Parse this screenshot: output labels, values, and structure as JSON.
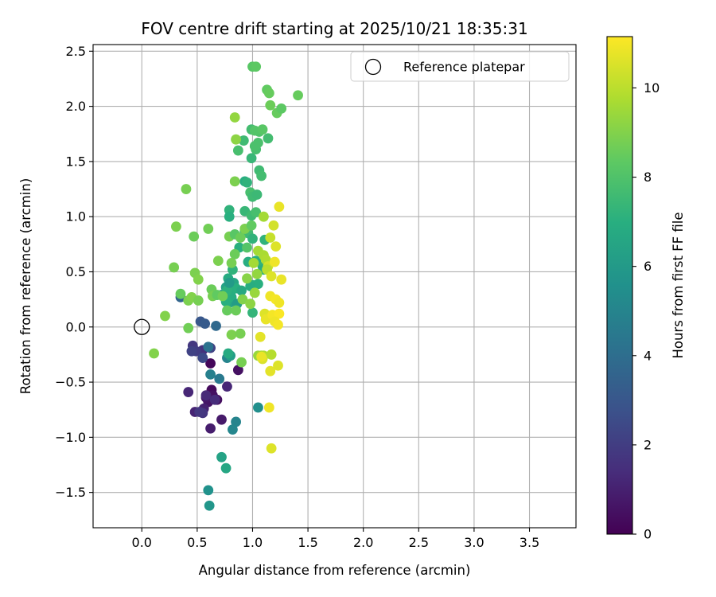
{
  "chart_data": {
    "type": "scatter",
    "title": "FOV centre drift starting at 2025/10/21 18:35:31",
    "xlabel": "Angular distance from reference (arcmin)",
    "ylabel": "Rotation from reference (arcmin)",
    "xlim": [
      -0.44,
      3.92
    ],
    "ylim": [
      -1.82,
      2.56
    ],
    "xticks": [
      0.0,
      0.5,
      1.0,
      1.5,
      2.0,
      2.5,
      3.0,
      3.5
    ],
    "xtick_labels": [
      "0.0",
      "0.5",
      "1.0",
      "1.5",
      "2.0",
      "2.5",
      "3.0",
      "3.5"
    ],
    "yticks": [
      -1.5,
      -1.0,
      -0.5,
      0.0,
      0.5,
      1.0,
      1.5,
      2.0,
      2.5
    ],
    "ytick_labels": [
      "−1.5",
      "−1.0",
      "−0.5",
      "0.0",
      "0.5",
      "1.0",
      "1.5",
      "2.0",
      "2.5"
    ],
    "grid": true,
    "legend": {
      "position": "top-right",
      "entries": [
        "Reference platepar"
      ]
    },
    "reference_point": {
      "x": 0.0,
      "y": 0.0
    },
    "colorbar": {
      "label": "Hours from first FF file",
      "colormap": "viridis",
      "range": [
        0,
        11.15
      ],
      "ticks": [
        0,
        2,
        4,
        6,
        8,
        10
      ],
      "tick_labels": [
        "0",
        "2",
        "4",
        "6",
        "8",
        "10"
      ]
    },
    "points": [
      {
        "x": 0.62,
        "y": -0.33,
        "h": 0.2
      },
      {
        "x": 0.63,
        "y": -0.57,
        "h": 0.3
      },
      {
        "x": 0.68,
        "y": -0.66,
        "h": 0.4
      },
      {
        "x": 0.64,
        "y": -0.62,
        "h": 0.5
      },
      {
        "x": 0.6,
        "y": -0.68,
        "h": 0.6
      },
      {
        "x": 0.58,
        "y": -0.64,
        "h": 0.7
      },
      {
        "x": 0.72,
        "y": -0.84,
        "h": 0.8
      },
      {
        "x": 0.62,
        "y": -0.92,
        "h": 0.9
      },
      {
        "x": 0.87,
        "y": -0.39,
        "h": 0.5
      },
      {
        "x": 0.56,
        "y": -0.74,
        "h": 1.0
      },
      {
        "x": 0.48,
        "y": -0.77,
        "h": 1.1
      },
      {
        "x": 0.42,
        "y": -0.59,
        "h": 1.2
      },
      {
        "x": 0.58,
        "y": -0.62,
        "h": 1.3
      },
      {
        "x": 0.77,
        "y": -0.54,
        "h": 1.2
      },
      {
        "x": 0.66,
        "y": -0.66,
        "h": 1.4
      },
      {
        "x": 0.55,
        "y": -0.78,
        "h": 1.7
      },
      {
        "x": 0.52,
        "y": -0.77,
        "h": 1.8
      },
      {
        "x": 0.55,
        "y": -0.21,
        "h": 1.6
      },
      {
        "x": 0.46,
        "y": -0.17,
        "h": 1.8
      },
      {
        "x": 0.49,
        "y": -0.22,
        "h": 2.0
      },
      {
        "x": 0.62,
        "y": -0.19,
        "h": 2.2
      },
      {
        "x": 0.45,
        "y": -0.22,
        "h": 2.2
      },
      {
        "x": 0.55,
        "y": -0.28,
        "h": 2.5
      },
      {
        "x": 0.53,
        "y": 0.05,
        "h": 3.0
      },
      {
        "x": 0.57,
        "y": 0.03,
        "h": 3.2
      },
      {
        "x": 0.35,
        "y": 0.27,
        "h": 3.6
      },
      {
        "x": 0.67,
        "y": 0.01,
        "h": 3.8
      },
      {
        "x": 0.6,
        "y": -0.18,
        "h": 4.2
      },
      {
        "x": 0.7,
        "y": -0.47,
        "h": 4.5
      },
      {
        "x": 0.62,
        "y": -0.43,
        "h": 4.8
      },
      {
        "x": 0.85,
        "y": -0.86,
        "h": 5.0
      },
      {
        "x": 0.82,
        "y": -0.93,
        "h": 5.1
      },
      {
        "x": 1.05,
        "y": -0.73,
        "h": 5.5
      },
      {
        "x": 0.77,
        "y": -0.28,
        "h": 5.0
      },
      {
        "x": 0.6,
        "y": -1.48,
        "h": 5.6
      },
      {
        "x": 0.61,
        "y": -1.62,
        "h": 5.8
      },
      {
        "x": 0.72,
        "y": -1.18,
        "h": 6.4
      },
      {
        "x": 0.76,
        "y": -1.28,
        "h": 6.6
      },
      {
        "x": 0.8,
        "y": -0.26,
        "h": 6.2
      },
      {
        "x": 0.78,
        "y": -0.24,
        "h": 6.8
      },
      {
        "x": 0.72,
        "y": 0.29,
        "h": 6.0
      },
      {
        "x": 0.8,
        "y": 0.31,
        "h": 6.2
      },
      {
        "x": 0.76,
        "y": 0.36,
        "h": 6.4
      },
      {
        "x": 0.79,
        "y": 0.22,
        "h": 6.5
      },
      {
        "x": 0.83,
        "y": 0.4,
        "h": 6.6
      },
      {
        "x": 0.78,
        "y": 0.44,
        "h": 6.8
      },
      {
        "x": 0.81,
        "y": 0.27,
        "h": 6.9
      },
      {
        "x": 0.76,
        "y": 0.23,
        "h": 7.0
      },
      {
        "x": 0.85,
        "y": 0.35,
        "h": 7.0
      },
      {
        "x": 0.77,
        "y": 0.33,
        "h": 7.1
      },
      {
        "x": 0.82,
        "y": 0.52,
        "h": 7.2
      },
      {
        "x": 0.79,
        "y": 0.4,
        "h": 6.0
      },
      {
        "x": 0.86,
        "y": 0.21,
        "h": 6.1
      },
      {
        "x": 0.9,
        "y": 0.33,
        "h": 6.7
      },
      {
        "x": 0.79,
        "y": 1.06,
        "h": 7.2
      },
      {
        "x": 0.79,
        "y": 1.0,
        "h": 7.0
      },
      {
        "x": 0.93,
        "y": 1.05,
        "h": 7.4
      },
      {
        "x": 0.88,
        "y": 0.72,
        "h": 7.0
      },
      {
        "x": 0.93,
        "y": 0.87,
        "h": 7.4
      },
      {
        "x": 0.96,
        "y": 0.85,
        "h": 7.6
      },
      {
        "x": 0.93,
        "y": 1.32,
        "h": 6.9
      },
      {
        "x": 0.98,
        "y": 1.22,
        "h": 7.8
      },
      {
        "x": 1.0,
        "y": 1.18,
        "h": 7.6
      },
      {
        "x": 1.04,
        "y": 1.2,
        "h": 7.5
      },
      {
        "x": 0.96,
        "y": 0.59,
        "h": 6.9
      },
      {
        "x": 1.0,
        "y": 0.8,
        "h": 7.2
      },
      {
        "x": 0.99,
        "y": 1.01,
        "h": 7.6
      },
      {
        "x": 1.03,
        "y": 1.04,
        "h": 7.8
      },
      {
        "x": 1.03,
        "y": 0.6,
        "h": 7.0
      },
      {
        "x": 1.0,
        "y": 0.38,
        "h": 7.1
      },
      {
        "x": 1.05,
        "y": 0.39,
        "h": 7.0
      },
      {
        "x": 0.98,
        "y": 0.37,
        "h": 6.9
      },
      {
        "x": 1.0,
        "y": 0.13,
        "h": 7.3
      },
      {
        "x": 1.09,
        "y": 0.55,
        "h": 7.2
      },
      {
        "x": 1.1,
        "y": 0.52,
        "h": 6.9
      },
      {
        "x": 1.11,
        "y": 0.79,
        "h": 7.2
      },
      {
        "x": 0.95,
        "y": 1.31,
        "h": 7.2
      },
      {
        "x": 0.99,
        "y": 1.53,
        "h": 7.4
      },
      {
        "x": 1.06,
        "y": 1.42,
        "h": 7.6
      },
      {
        "x": 1.08,
        "y": 1.37,
        "h": 7.7
      },
      {
        "x": 1.03,
        "y": 1.61,
        "h": 7.8
      },
      {
        "x": 1.05,
        "y": 1.67,
        "h": 7.9
      },
      {
        "x": 1.06,
        "y": 1.77,
        "h": 8.0
      },
      {
        "x": 1.02,
        "y": 1.64,
        "h": 7.9
      },
      {
        "x": 0.99,
        "y": 1.79,
        "h": 7.7
      },
      {
        "x": 1.02,
        "y": 1.78,
        "h": 8.1
      },
      {
        "x": 1.09,
        "y": 1.79,
        "h": 8.2
      },
      {
        "x": 1.14,
        "y": 1.71,
        "h": 7.7
      },
      {
        "x": 0.92,
        "y": 1.69,
        "h": 7.6
      },
      {
        "x": 0.87,
        "y": 1.6,
        "h": 7.8
      },
      {
        "x": 1.0,
        "y": 2.36,
        "h": 8.2
      },
      {
        "x": 1.03,
        "y": 2.36,
        "h": 8.3
      },
      {
        "x": 1.13,
        "y": 2.15,
        "h": 8.4
      },
      {
        "x": 1.15,
        "y": 2.12,
        "h": 8.5
      },
      {
        "x": 1.16,
        "y": 2.01,
        "h": 8.6
      },
      {
        "x": 1.22,
        "y": 1.94,
        "h": 8.5
      },
      {
        "x": 1.26,
        "y": 1.98,
        "h": 8.3
      },
      {
        "x": 1.41,
        "y": 2.1,
        "h": 8.5
      },
      {
        "x": 0.79,
        "y": 0.82,
        "h": 8.8
      },
      {
        "x": 0.84,
        "y": 0.84,
        "h": 8.2
      },
      {
        "x": 0.89,
        "y": 0.81,
        "h": 8.6
      },
      {
        "x": 0.93,
        "y": 0.89,
        "h": 8.9
      },
      {
        "x": 0.95,
        "y": 0.72,
        "h": 8.1
      },
      {
        "x": 0.99,
        "y": 0.92,
        "h": 8.4
      },
      {
        "x": 0.84,
        "y": 0.66,
        "h": 8.6
      },
      {
        "x": 0.81,
        "y": 0.58,
        "h": 8.8
      },
      {
        "x": 0.69,
        "y": 0.6,
        "h": 8.9
      },
      {
        "x": 0.84,
        "y": 1.32,
        "h": 8.9
      },
      {
        "x": 0.85,
        "y": 1.7,
        "h": 9.2
      },
      {
        "x": 0.84,
        "y": 1.9,
        "h": 9.3
      },
      {
        "x": 0.4,
        "y": 1.25,
        "h": 8.8
      },
      {
        "x": 0.47,
        "y": 0.82,
        "h": 8.6
      },
      {
        "x": 0.31,
        "y": 0.91,
        "h": 8.9
      },
      {
        "x": 0.6,
        "y": 0.89,
        "h": 8.7
      },
      {
        "x": 0.29,
        "y": 0.54,
        "h": 8.8
      },
      {
        "x": 0.48,
        "y": 0.49,
        "h": 8.9
      },
      {
        "x": 0.51,
        "y": 0.43,
        "h": 9.0
      },
      {
        "x": 0.35,
        "y": 0.3,
        "h": 8.5
      },
      {
        "x": 0.42,
        "y": 0.24,
        "h": 8.9
      },
      {
        "x": 0.45,
        "y": 0.27,
        "h": 9.0
      },
      {
        "x": 0.51,
        "y": 0.24,
        "h": 8.8
      },
      {
        "x": 0.63,
        "y": 0.34,
        "h": 8.6
      },
      {
        "x": 0.64,
        "y": 0.28,
        "h": 8.8
      },
      {
        "x": 0.68,
        "y": 0.29,
        "h": 8.4
      },
      {
        "x": 0.73,
        "y": 0.28,
        "h": 8.7
      },
      {
        "x": 0.77,
        "y": 0.15,
        "h": 8.5
      },
      {
        "x": 0.85,
        "y": 0.15,
        "h": 8.6
      },
      {
        "x": 0.42,
        "y": -0.01,
        "h": 8.7
      },
      {
        "x": 0.21,
        "y": 0.1,
        "h": 9.0
      },
      {
        "x": 0.11,
        "y": -0.24,
        "h": 9.0
      },
      {
        "x": 0.81,
        "y": -0.07,
        "h": 8.9
      },
      {
        "x": 0.89,
        "y": -0.06,
        "h": 8.8
      },
      {
        "x": 0.9,
        "y": -0.32,
        "h": 8.8
      },
      {
        "x": 0.91,
        "y": 0.25,
        "h": 9.0
      },
      {
        "x": 0.98,
        "y": 0.21,
        "h": 9.2
      },
      {
        "x": 0.95,
        "y": 0.44,
        "h": 9.1
      },
      {
        "x": 1.02,
        "y": 0.31,
        "h": 9.4
      },
      {
        "x": 1.04,
        "y": 0.48,
        "h": 9.3
      },
      {
        "x": 1.05,
        "y": 0.69,
        "h": 9.6
      },
      {
        "x": 1.1,
        "y": 0.65,
        "h": 9.7
      },
      {
        "x": 1.01,
        "y": 0.58,
        "h": 9.6
      },
      {
        "x": 1.12,
        "y": 0.61,
        "h": 9.8
      },
      {
        "x": 1.1,
        "y": 1.0,
        "h": 9.6
      },
      {
        "x": 1.05,
        "y": -0.26,
        "h": 9.4
      },
      {
        "x": 1.08,
        "y": -0.26,
        "h": 9.6
      },
      {
        "x": 1.1,
        "y": -0.26,
        "h": 9.8
      },
      {
        "x": 1.17,
        "y": -0.25,
        "h": 9.9
      },
      {
        "x": 1.16,
        "y": 0.81,
        "h": 10.2
      },
      {
        "x": 1.19,
        "y": 0.92,
        "h": 10.4
      },
      {
        "x": 1.21,
        "y": 0.73,
        "h": 10.6
      },
      {
        "x": 1.24,
        "y": 1.09,
        "h": 10.8
      },
      {
        "x": 1.14,
        "y": 0.55,
        "h": 10.4
      },
      {
        "x": 1.13,
        "y": 0.52,
        "h": 10.0
      },
      {
        "x": 1.2,
        "y": 0.59,
        "h": 10.9
      },
      {
        "x": 1.17,
        "y": 0.46,
        "h": 10.6
      },
      {
        "x": 1.26,
        "y": 0.43,
        "h": 10.8
      },
      {
        "x": 1.16,
        "y": 0.28,
        "h": 10.9
      },
      {
        "x": 1.21,
        "y": 0.25,
        "h": 11.0
      },
      {
        "x": 1.24,
        "y": 0.22,
        "h": 10.9
      },
      {
        "x": 1.11,
        "y": 0.12,
        "h": 10.6
      },
      {
        "x": 1.12,
        "y": 0.07,
        "h": 10.8
      },
      {
        "x": 1.18,
        "y": 0.11,
        "h": 11.0
      },
      {
        "x": 1.24,
        "y": 0.12,
        "h": 11.1
      },
      {
        "x": 1.2,
        "y": 0.05,
        "h": 10.9
      },
      {
        "x": 1.23,
        "y": 0.02,
        "h": 11.0
      },
      {
        "x": 1.07,
        "y": -0.09,
        "h": 10.7
      },
      {
        "x": 1.09,
        "y": -0.29,
        "h": 10.5
      },
      {
        "x": 1.08,
        "y": -0.27,
        "h": 10.8
      },
      {
        "x": 1.16,
        "y": -0.4,
        "h": 10.7
      },
      {
        "x": 1.23,
        "y": -0.35,
        "h": 10.6
      },
      {
        "x": 1.15,
        "y": -0.73,
        "h": 10.9
      },
      {
        "x": 1.17,
        "y": -1.1,
        "h": 10.6
      }
    ]
  }
}
